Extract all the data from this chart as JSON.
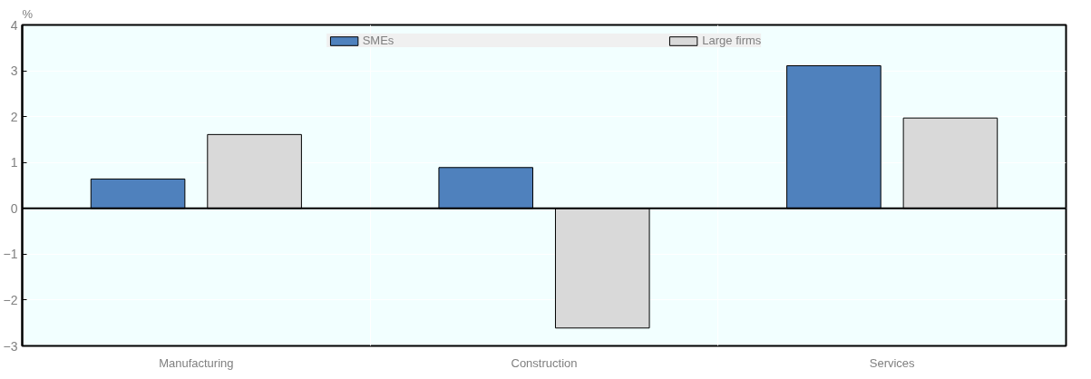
{
  "chart_data": {
    "type": "bar",
    "ylabel": "%",
    "categories": [
      "Manufacturing",
      "Construction",
      "Services"
    ],
    "series": [
      {
        "name": "SMEs",
        "color": "#4f81bd",
        "values": [
          0.64,
          0.89,
          3.11
        ]
      },
      {
        "name": "Large firms",
        "color": "#d9d9d9",
        "values": [
          1.61,
          -2.61,
          1.97
        ]
      }
    ],
    "ylim": [
      -3,
      4
    ],
    "yticks": [
      -3,
      -2,
      -1,
      0,
      1,
      2,
      3,
      4
    ],
    "grid": true,
    "legend": "top"
  }
}
